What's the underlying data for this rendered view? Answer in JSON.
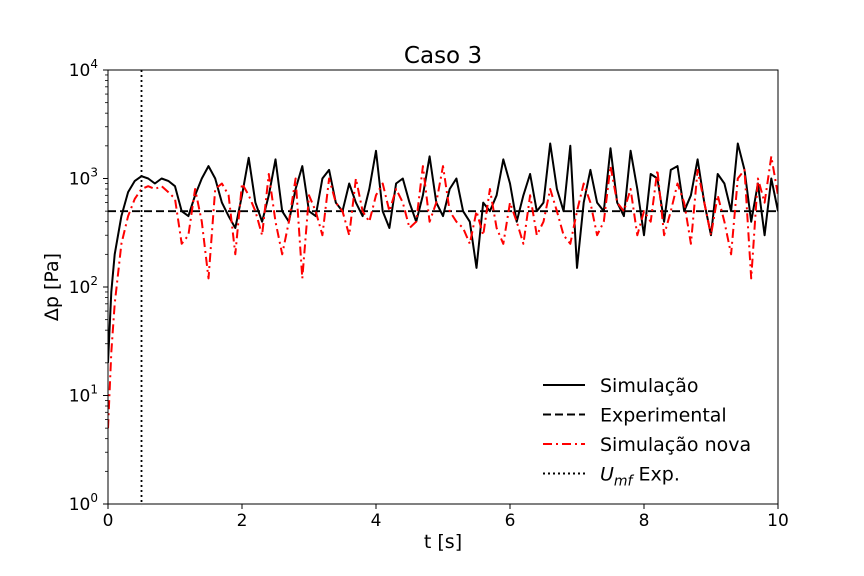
{
  "chart_data": {
    "type": "line",
    "title": "Caso 3",
    "xlabel": "t [s]",
    "ylabel": "Δp [Pa]",
    "xlim": [
      0,
      10
    ],
    "ylim": [
      1,
      10000
    ],
    "yscale": "log",
    "x_ticks": [
      0,
      2,
      4,
      6,
      8,
      10
    ],
    "x_tick_labels": [
      "0",
      "2",
      "4",
      "6",
      "8",
      "10"
    ],
    "y_ticks": [
      1,
      10,
      100,
      1000,
      10000
    ],
    "y_tick_labels": [
      {
        "base": "10",
        "exp": "0"
      },
      {
        "base": "10",
        "exp": "1"
      },
      {
        "base": "10",
        "exp": "2"
      },
      {
        "base": "10",
        "exp": "3"
      },
      {
        "base": "10",
        "exp": "4"
      }
    ],
    "grid": false,
    "legend_position": "lower-right",
    "series": [
      {
        "name": "Simulação",
        "color": "#000000",
        "style": "solid",
        "x": [
          0.0,
          0.05,
          0.1,
          0.2,
          0.3,
          0.4,
          0.5,
          0.6,
          0.7,
          0.8,
          0.9,
          1.0,
          1.1,
          1.2,
          1.3,
          1.4,
          1.5,
          1.6,
          1.7,
          1.8,
          1.9,
          2.0,
          2.1,
          2.2,
          2.3,
          2.4,
          2.5,
          2.6,
          2.7,
          2.8,
          2.9,
          3.0,
          3.1,
          3.2,
          3.3,
          3.4,
          3.5,
          3.6,
          3.7,
          3.8,
          3.9,
          4.0,
          4.1,
          4.2,
          4.3,
          4.4,
          4.5,
          4.6,
          4.7,
          4.8,
          4.9,
          5.0,
          5.1,
          5.2,
          5.3,
          5.4,
          5.5,
          5.6,
          5.7,
          5.8,
          5.9,
          6.0,
          6.1,
          6.2,
          6.3,
          6.4,
          6.5,
          6.6,
          6.7,
          6.8,
          6.9,
          7.0,
          7.1,
          7.2,
          7.3,
          7.4,
          7.5,
          7.6,
          7.7,
          7.8,
          7.9,
          8.0,
          8.1,
          8.2,
          8.3,
          8.4,
          8.5,
          8.6,
          8.7,
          8.8,
          8.9,
          9.0,
          9.1,
          9.2,
          9.3,
          9.4,
          9.5,
          9.6,
          9.7,
          9.8,
          9.9,
          10.0
        ],
        "y": [
          20,
          90,
          200,
          450,
          750,
          950,
          1050,
          1000,
          900,
          1000,
          950,
          850,
          500,
          450,
          700,
          1000,
          1300,
          1000,
          600,
          450,
          350,
          700,
          1550,
          600,
          400,
          700,
          1500,
          500,
          400,
          800,
          1300,
          500,
          450,
          1000,
          1200,
          600,
          500,
          900,
          600,
          450,
          800,
          1800,
          500,
          350,
          900,
          1000,
          600,
          400,
          700,
          1600,
          600,
          450,
          800,
          1000,
          500,
          400,
          150,
          600,
          500,
          700,
          1500,
          900,
          400,
          700,
          1100,
          500,
          600,
          2100,
          800,
          500,
          2000,
          150,
          600,
          1200,
          600,
          500,
          1900,
          600,
          450,
          1800,
          800,
          300,
          1100,
          1000,
          400,
          1200,
          1300,
          500,
          700,
          1500,
          600,
          300,
          1100,
          900,
          500,
          2100,
          1200,
          400,
          900,
          300,
          1000,
          500
        ]
      },
      {
        "name": "Experimental",
        "color": "#000000",
        "style": "dashed",
        "x": [
          0,
          10
        ],
        "y": [
          500,
          500
        ]
      },
      {
        "name": "Simulação nova",
        "color": "#ff0000",
        "style": "dashdot",
        "x": [
          0.0,
          0.05,
          0.1,
          0.2,
          0.3,
          0.4,
          0.5,
          0.6,
          0.7,
          0.8,
          0.9,
          1.0,
          1.1,
          1.2,
          1.3,
          1.4,
          1.5,
          1.6,
          1.7,
          1.8,
          1.9,
          2.0,
          2.1,
          2.2,
          2.3,
          2.4,
          2.5,
          2.6,
          2.7,
          2.8,
          2.9,
          3.0,
          3.1,
          3.2,
          3.3,
          3.4,
          3.5,
          3.6,
          3.7,
          3.8,
          3.9,
          4.0,
          4.1,
          4.2,
          4.3,
          4.4,
          4.5,
          4.6,
          4.7,
          4.8,
          4.9,
          5.0,
          5.1,
          5.2,
          5.3,
          5.4,
          5.5,
          5.6,
          5.7,
          5.8,
          5.9,
          6.0,
          6.1,
          6.2,
          6.3,
          6.4,
          6.5,
          6.6,
          6.7,
          6.8,
          6.9,
          7.0,
          7.1,
          7.2,
          7.3,
          7.4,
          7.5,
          7.6,
          7.7,
          7.8,
          7.9,
          8.0,
          8.1,
          8.2,
          8.3,
          8.4,
          8.5,
          8.6,
          8.7,
          8.8,
          8.9,
          9.0,
          9.1,
          9.2,
          9.3,
          9.4,
          9.5,
          9.6,
          9.7,
          9.8,
          9.9,
          10.0
        ],
        "y": [
          5,
          25,
          70,
          250,
          450,
          650,
          800,
          850,
          800,
          850,
          750,
          650,
          250,
          300,
          800,
          400,
          120,
          800,
          900,
          700,
          200,
          900,
          700,
          500,
          300,
          1100,
          400,
          200,
          400,
          1000,
          120,
          700,
          500,
          300,
          1000,
          600,
          500,
          300,
          1000,
          500,
          400,
          700,
          900,
          500,
          800,
          600,
          350,
          400,
          1300,
          400,
          600,
          1300,
          500,
          400,
          350,
          250,
          500,
          300,
          800,
          350,
          250,
          600,
          400,
          250,
          700,
          300,
          400,
          800,
          500,
          300,
          250,
          500,
          900,
          600,
          300,
          400,
          1300,
          600,
          500,
          800,
          300,
          500,
          400,
          1200,
          300,
          500,
          900,
          600,
          250,
          1200,
          600,
          300,
          700,
          400,
          200,
          1000,
          1200,
          120,
          1000,
          600,
          1600,
          700
        ]
      },
      {
        "name": "U",
        "name_sub": "mf",
        "name_suffix": " Exp.",
        "color": "#000000",
        "style": "dotted",
        "vertical_x": 0.5
      }
    ]
  }
}
